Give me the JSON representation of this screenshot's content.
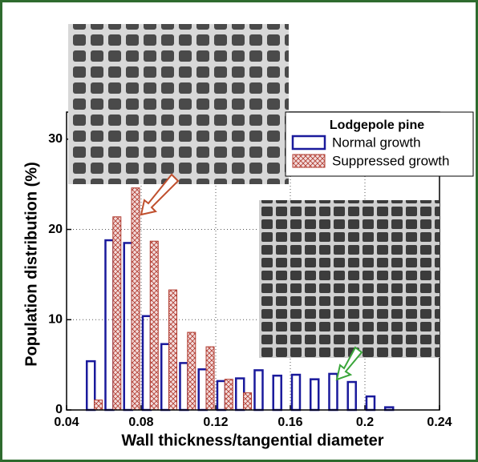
{
  "chart_data": {
    "type": "bar",
    "x_label": "Wall thickness/tangential diameter",
    "y_label": "Population distribution (%)",
    "legend_title": "Lodgepole pine",
    "xlim": [
      0.04,
      0.24
    ],
    "xticks": [
      0.04,
      0.08,
      0.12,
      0.16,
      0.2,
      0.24
    ],
    "ylim": [
      0,
      33
    ],
    "yticks": [
      0,
      10,
      20,
      30
    ],
    "grid": true,
    "series": [
      {
        "name": "Normal growth",
        "color": "#1a1a9c",
        "style": "outline",
        "x": [
          0.053,
          0.063,
          0.073,
          0.083,
          0.093,
          0.103,
          0.113,
          0.123,
          0.133,
          0.143,
          0.153,
          0.163,
          0.173,
          0.183,
          0.193,
          0.203,
          0.213
        ],
        "values": [
          5.4,
          18.8,
          18.5,
          10.4,
          7.3,
          5.2,
          4.5,
          3.2,
          3.5,
          4.4,
          3.8,
          3.9,
          3.4,
          4.0,
          3.1,
          1.5,
          0.3
        ]
      },
      {
        "name": "Suppressed growth",
        "color": "#b03a2e",
        "style": "hatch",
        "x": [
          0.057,
          0.067,
          0.077,
          0.087,
          0.097,
          0.107,
          0.117,
          0.127,
          0.137
        ],
        "values": [
          1.1,
          21.4,
          24.6,
          18.7,
          13.3,
          8.6,
          7.0,
          3.4,
          1.9
        ]
      }
    ]
  }
}
